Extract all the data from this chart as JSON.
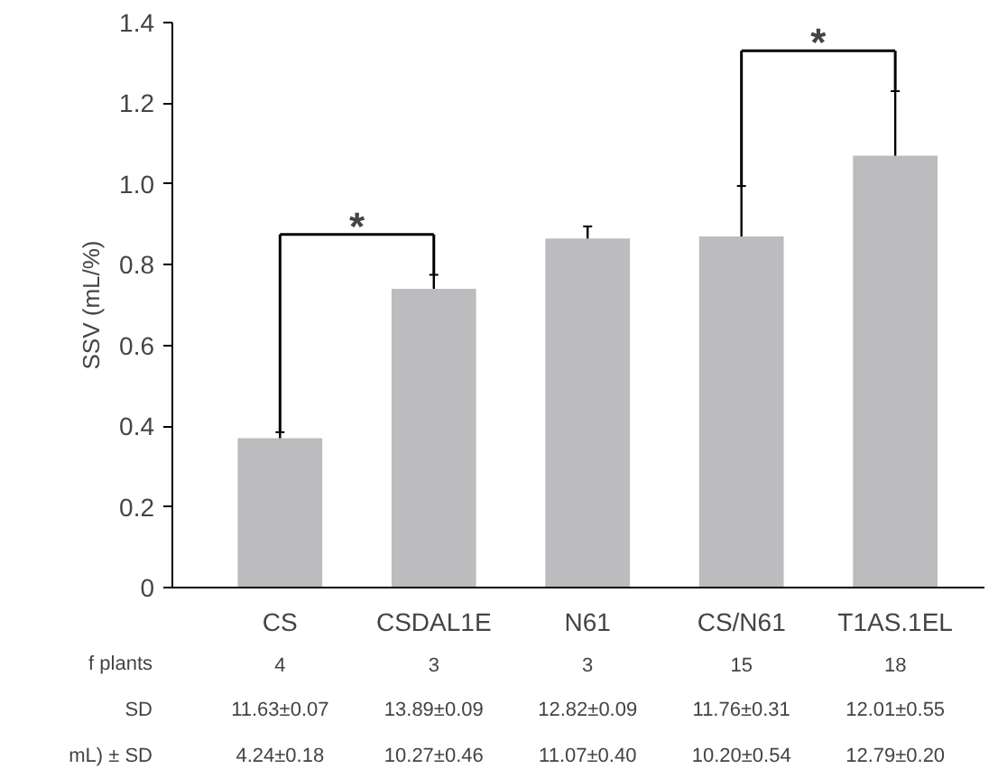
{
  "chart_data": {
    "type": "bar",
    "ylabel": "SSV (mL/%)",
    "categories": [
      "CS",
      "CSDAL1E",
      "N61",
      "CS/N61",
      "T1AS.1EL"
    ],
    "values": [
      0.37,
      0.74,
      0.865,
      0.87,
      1.07
    ],
    "errors": [
      0.015,
      0.035,
      0.03,
      0.125,
      0.16
    ],
    "color": "#bcbcbe",
    "ylim": [
      0,
      1.4
    ],
    "yticks": [
      0,
      {
        "value": 0.2,
        "label": "0.2"
      },
      {
        "value": 0.4,
        "label": "0.4"
      },
      {
        "value": 0.6,
        "label": "0.6"
      },
      {
        "value": 0.8,
        "label": "0.8"
      },
      {
        "value": 1.0,
        "label": "1.0"
      },
      {
        "value": 1.2,
        "label": "1.2"
      },
      {
        "value": 1.4,
        "label": "1.4"
      }
    ],
    "grid": false,
    "annotations": [
      "*",
      "*",
      "f plants",
      "4",
      "3",
      "3",
      "15",
      "18",
      "SD",
      "11.63±0.07",
      "13.89±0.09",
      "12.82±0.09",
      "11.76±0.31",
      "12.01±0.55",
      "mL) ± SD",
      "4.24±0.18",
      "10.27±0.46",
      "11.07±0.40",
      "10.20±0.54",
      "12.79±0.20"
    ]
  }
}
